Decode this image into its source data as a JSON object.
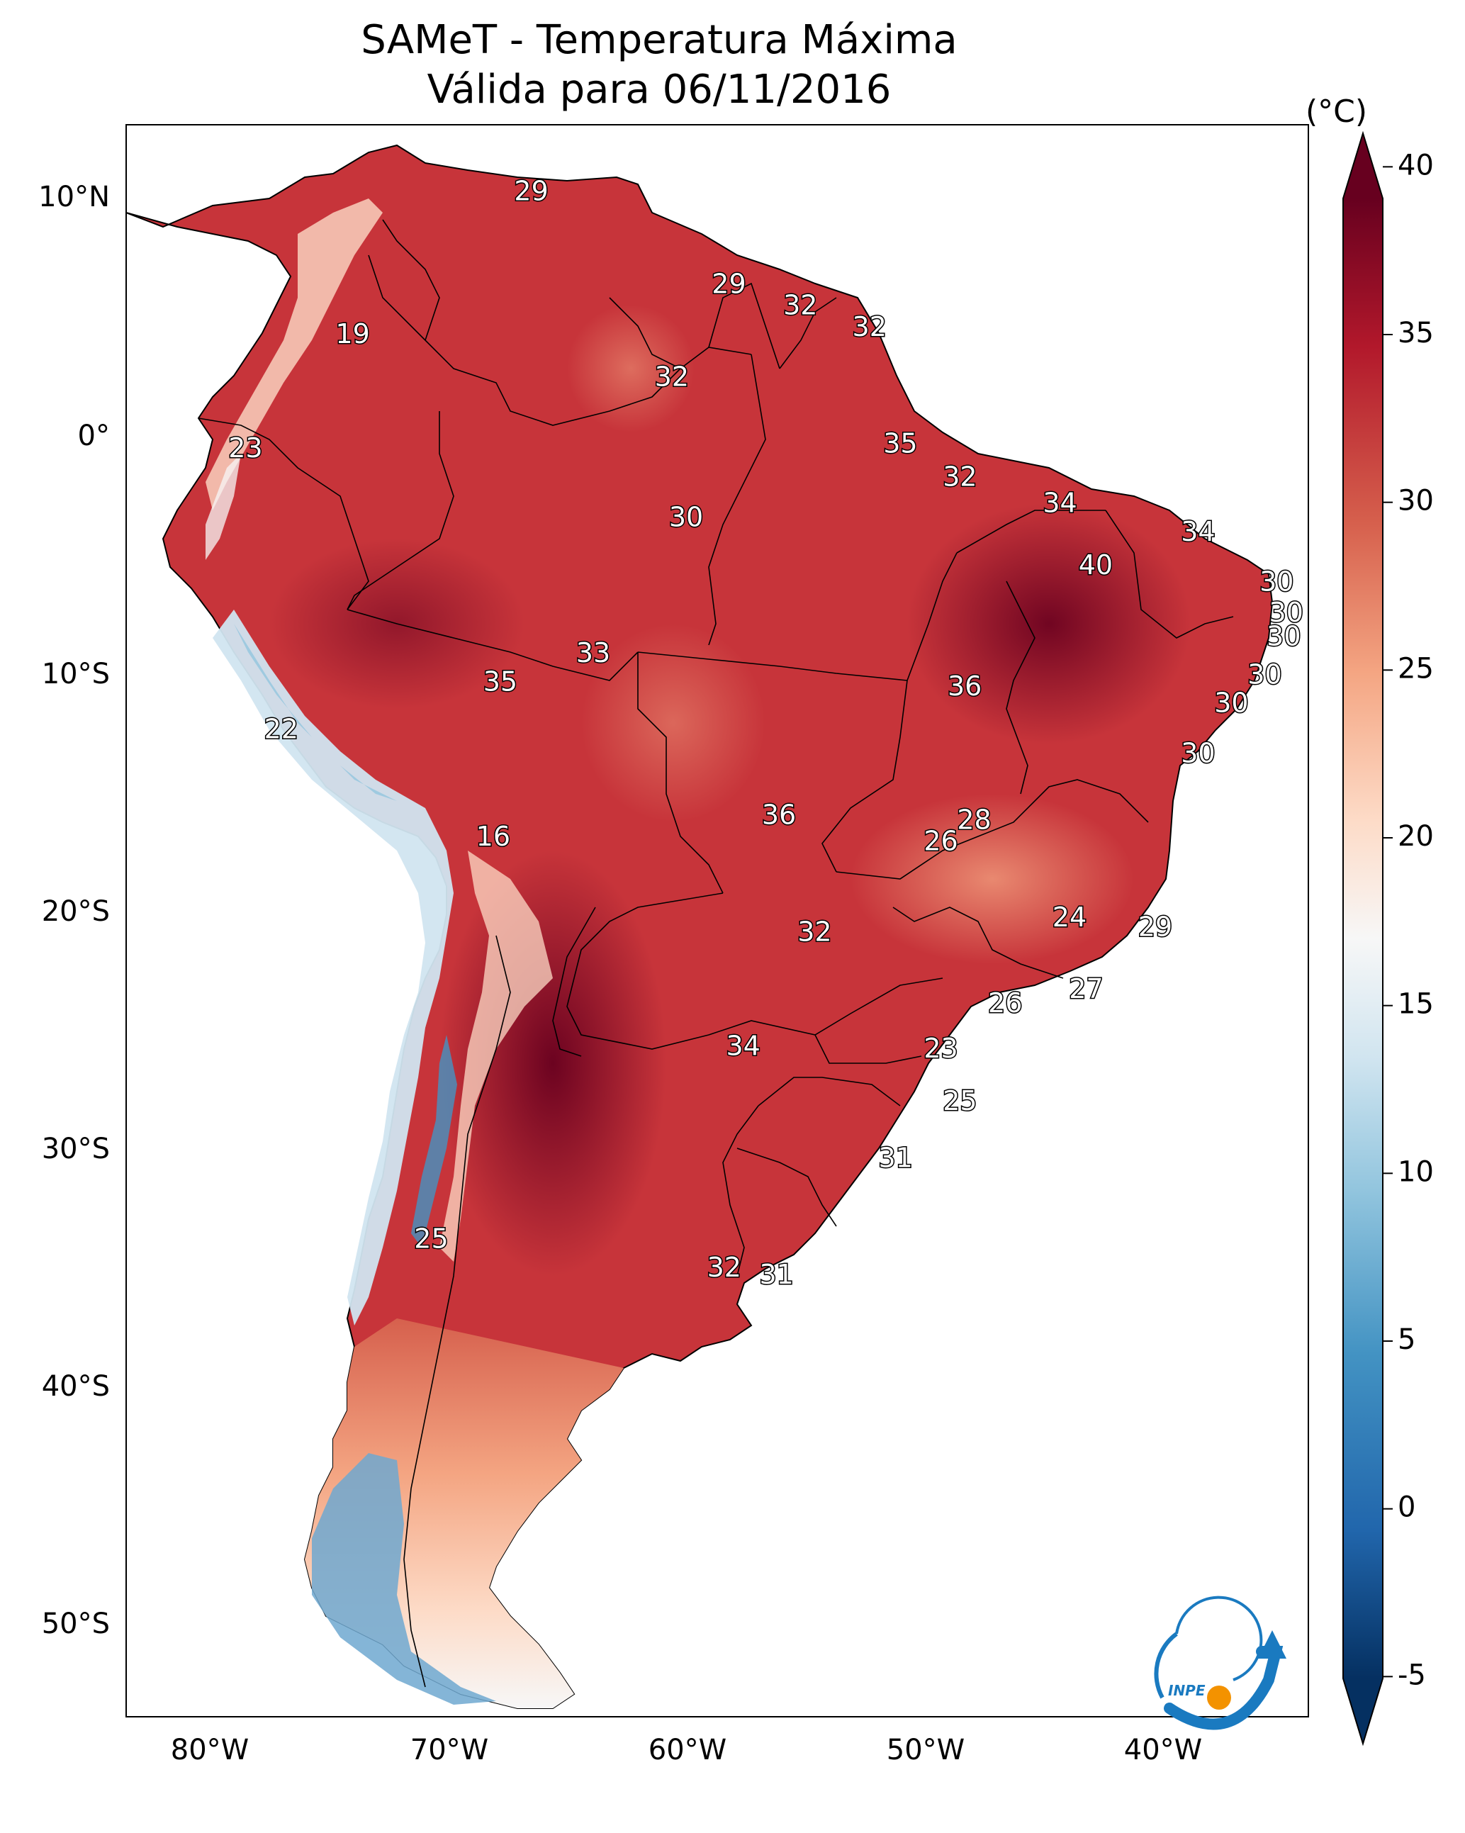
{
  "title": "SAMeT - Temperatura Máxima",
  "subtitle": "Válida para 06/11/2016",
  "colorbar": {
    "unit": "(°C)",
    "ticks": [
      40,
      35,
      30,
      25,
      20,
      15,
      10,
      5,
      0,
      -5
    ],
    "min": -7,
    "max": 41
  },
  "axes": {
    "lon_ticks": [
      "80°W",
      "70°W",
      "60°W",
      "50°W",
      "40°W"
    ],
    "lat_ticks": [
      "10°N",
      "0°",
      "10°S",
      "20°S",
      "30°S",
      "40°S",
      "50°S"
    ]
  },
  "station_values": [
    {
      "value": "29",
      "lon": -66.5,
      "lat": 10.6
    },
    {
      "value": "19",
      "lon": -74.0,
      "lat": 4.6
    },
    {
      "value": "29",
      "lon": -58.2,
      "lat": 6.7
    },
    {
      "value": "32",
      "lon": -55.2,
      "lat": 5.8
    },
    {
      "value": "32",
      "lon": -52.3,
      "lat": 4.9
    },
    {
      "value": "32",
      "lon": -60.6,
      "lat": 2.8
    },
    {
      "value": "23",
      "lon": -78.5,
      "lat": -0.2
    },
    {
      "value": "35",
      "lon": -51.0,
      "lat": 0.0
    },
    {
      "value": "32",
      "lon": -48.5,
      "lat": -1.4
    },
    {
      "value": "30",
      "lon": -60.0,
      "lat": -3.1
    },
    {
      "value": "34",
      "lon": -44.3,
      "lat": -2.5
    },
    {
      "value": "34",
      "lon": -38.5,
      "lat": -3.7
    },
    {
      "value": "40",
      "lon": -42.8,
      "lat": -5.1
    },
    {
      "value": "30",
      "lon": -35.2,
      "lat": -5.8
    },
    {
      "value": "30",
      "lon": -34.8,
      "lat": -7.1
    },
    {
      "value": "30",
      "lon": -34.9,
      "lat": -8.1
    },
    {
      "value": "33",
      "lon": -63.9,
      "lat": -8.8
    },
    {
      "value": "35",
      "lon": -67.8,
      "lat": -10.0
    },
    {
      "value": "30",
      "lon": -35.7,
      "lat": -9.7
    },
    {
      "value": "36",
      "lon": -48.3,
      "lat": -10.2
    },
    {
      "value": "30",
      "lon": -37.1,
      "lat": -10.9
    },
    {
      "value": "30",
      "lon": -38.5,
      "lat": -13.0
    },
    {
      "value": "22",
      "lon": -77.0,
      "lat": -12.0
    },
    {
      "value": "36",
      "lon": -56.1,
      "lat": -15.6
    },
    {
      "value": "28",
      "lon": -47.9,
      "lat": -15.8
    },
    {
      "value": "26",
      "lon": -49.3,
      "lat": -16.7
    },
    {
      "value": "16",
      "lon": -68.1,
      "lat": -16.5
    },
    {
      "value": "24",
      "lon": -43.9,
      "lat": -19.9
    },
    {
      "value": "29",
      "lon": -40.3,
      "lat": -20.3
    },
    {
      "value": "32",
      "lon": -54.6,
      "lat": -20.5
    },
    {
      "value": "27",
      "lon": -43.2,
      "lat": -22.9
    },
    {
      "value": "26",
      "lon": -46.6,
      "lat": -23.5
    },
    {
      "value": "34",
      "lon": -57.6,
      "lat": -25.3
    },
    {
      "value": "23",
      "lon": -49.3,
      "lat": -25.4
    },
    {
      "value": "25",
      "lon": -48.5,
      "lat": -27.6
    },
    {
      "value": "31",
      "lon": -51.2,
      "lat": -30.0
    },
    {
      "value": "25",
      "lon": -70.7,
      "lat": -33.4
    },
    {
      "value": "32",
      "lon": -58.4,
      "lat": -34.6
    },
    {
      "value": "31",
      "lon": -56.2,
      "lat": -34.9
    }
  ],
  "logo": {
    "text": "INPE"
  },
  "colors": {
    "cmap": [
      "#053061",
      "#2166ac",
      "#4393c3",
      "#92c5de",
      "#d1e5f0",
      "#f7f7f7",
      "#fddbc7",
      "#f4a582",
      "#d6604d",
      "#b2182b",
      "#67001f"
    ],
    "logo_blue": "#1a7ac0",
    "logo_orange": "#f39200"
  }
}
